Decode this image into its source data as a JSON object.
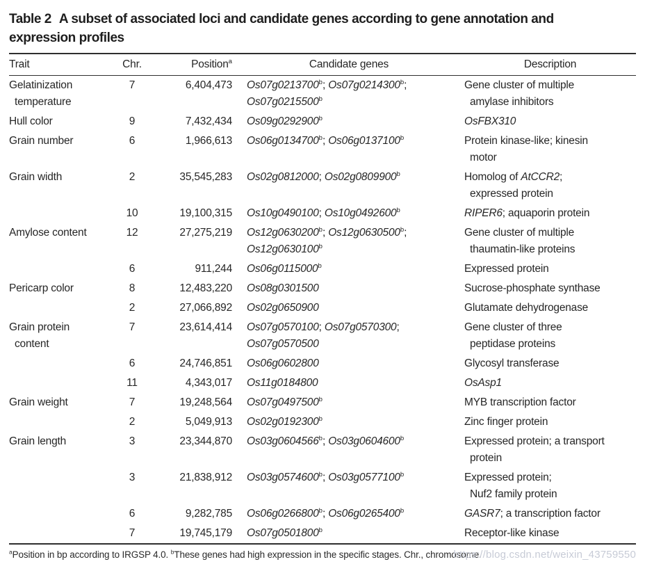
{
  "title": {
    "label": "Table 2",
    "text": "A subset of associated loci and candidate genes according to gene annotation and\nexpression profiles"
  },
  "table": {
    "headers": {
      "trait": "Trait",
      "chr": "Chr.",
      "position": "Position^a^",
      "genes": "Candidate genes",
      "description": "Description"
    },
    "rows": [
      {
        "trait": "Gelatinization\ntemperature",
        "chr": "7",
        "position": "6,404,473",
        "genes": "*Os07g0213700*^b^; *Os07g0214300*^b^;\n*Os07g0215500*^b^",
        "description": "Gene cluster of multiple\namylase inhibitors"
      },
      {
        "trait": "Hull color",
        "chr": "9",
        "position": "7,432,434",
        "genes": "*Os09g0292900*^b^",
        "description": "*OsFBX310*"
      },
      {
        "trait": "Grain number",
        "chr": "6",
        "position": "1,966,613",
        "genes": "*Os06g0134700*^b^; *Os06g0137100*^b^",
        "description": "Protein kinase-like; kinesin\nmotor"
      },
      {
        "trait": "Grain width",
        "chr": "2",
        "position": "35,545,283",
        "genes": "*Os02g0812000*; *Os02g0809900*^b^",
        "description": "Homolog of *AtCCR2*;\nexpressed protein"
      },
      {
        "trait": "",
        "chr": "10",
        "position": "19,100,315",
        "genes": "*Os10g0490100*; *Os10g0492600*^b^",
        "description": "*RIPER6*; aquaporin protein"
      },
      {
        "trait": "Amylose content",
        "chr": "12",
        "position": "27,275,219",
        "genes": "*Os12g0630200*^b^; *Os12g0630500*^b^;\n*Os12g0630100*^b^",
        "description": "Gene cluster of multiple\nthaumatin-like proteins"
      },
      {
        "trait": "",
        "chr": "6",
        "position": "911,244",
        "genes": "*Os06g0115000*^b^",
        "description": "Expressed protein"
      },
      {
        "trait": "Pericarp color",
        "chr": "8",
        "position": "12,483,220",
        "genes": "*Os08g0301500*",
        "description": "Sucrose-phosphate synthase"
      },
      {
        "trait": "",
        "chr": "2",
        "position": "27,066,892",
        "genes": "*Os02g0650900*",
        "description": "Glutamate dehydrogenase"
      },
      {
        "trait": "Grain protein\ncontent",
        "chr": "7",
        "position": "23,614,414",
        "genes": "*Os07g0570100*; *Os07g0570300*;\n*Os07g0570500*",
        "description": "Gene cluster of three\npeptidase proteins"
      },
      {
        "trait": "",
        "chr": "6",
        "position": "24,746,851",
        "genes": "*Os06g0602800*",
        "description": "Glycosyl transferase"
      },
      {
        "trait": "",
        "chr": "11",
        "position": "4,343,017",
        "genes": "*Os11g0184800*",
        "description": "*OsAsp1*"
      },
      {
        "trait": "Grain weight",
        "chr": "7",
        "position": "19,248,564",
        "genes": "*Os07g0497500*^b^",
        "description": "MYB transcription factor"
      },
      {
        "trait": "",
        "chr": "2",
        "position": "5,049,913",
        "genes": "*Os02g0192300*^b^",
        "description": "Zinc finger protein"
      },
      {
        "trait": "Grain length",
        "chr": "3",
        "position": "23,344,870",
        "genes": "*Os03g0604566*^b^; *Os03g0604600*^b^",
        "description": "Expressed protein; a transport\nprotein"
      },
      {
        "trait": "",
        "chr": "3",
        "position": "21,838,912",
        "genes": "*Os03g0574600*^b^; *Os03g0577100*^b^",
        "description": "Expressed protein;\nNuf2 family protein"
      },
      {
        "trait": "",
        "chr": "6",
        "position": "9,282,785",
        "genes": "*Os06g0266800*^b^; *Os06g0265400*^b^",
        "description": "*GASR7*; a transcription factor"
      },
      {
        "trait": "",
        "chr": "7",
        "position": "19,745,179",
        "genes": "*Os07g0501800*^b^",
        "description": "Receptor-like kinase"
      }
    ]
  },
  "footnote": {
    "text": "^a^Position in bp according to IRGSP 4.0. ^b^These genes had high expression in the specific stages. Chr., chromosome."
  },
  "watermark": {
    "text": "https://blog.csdn.net/weixin_43759550",
    "color": "#c7cbd6"
  },
  "colors": {
    "background": "#ffffff",
    "text": "#262626",
    "rule": "#2e2e2e"
  }
}
